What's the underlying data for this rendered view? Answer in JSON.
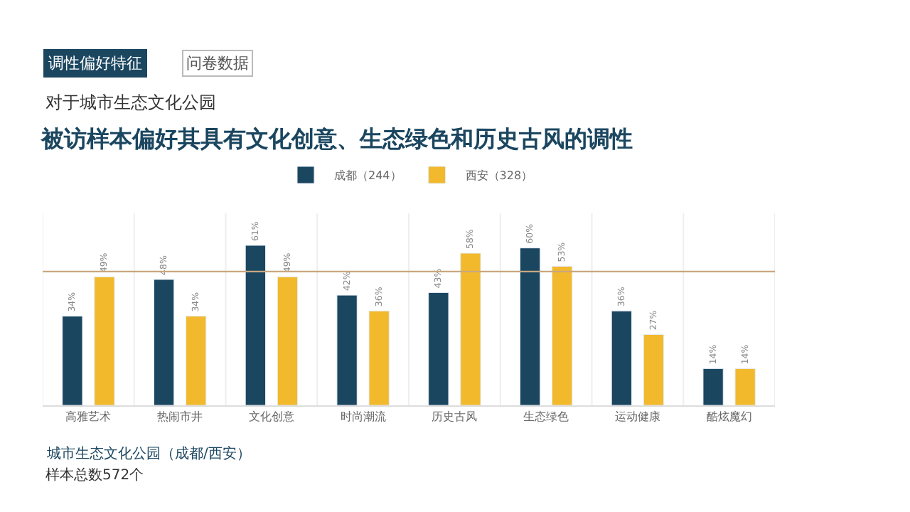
{
  "chart_data": {
    "type": "bar",
    "title": "被访样本偏好其具有文化创意、生态绿色和历史古风的调性",
    "subtitle": "对于城市生态文化公园",
    "categories": [
      "高雅艺术",
      "热闹市井",
      "文化创意",
      "时尚潮流",
      "历史古风",
      "生态绿色",
      "运动健康",
      "酷炫魔幻"
    ],
    "series": [
      {
        "name": "成都（244）",
        "color": "#1b4660",
        "values": [
          34,
          48,
          61,
          42,
          43,
          60,
          36,
          14
        ],
        "value_labels": [
          "34%",
          "48%",
          "61%",
          "42%",
          "43%",
          "60%",
          "36%",
          "14%"
        ]
      },
      {
        "name": "西安（328）",
        "color": "#f2b92c",
        "values": [
          49,
          34,
          49,
          36,
          58,
          53,
          27,
          14
        ],
        "value_labels": [
          "49%",
          "34%",
          "49%",
          "36%",
          "58%",
          "53%",
          "27%",
          "14%"
        ]
      }
    ],
    "ref_lines": [
      {
        "axis": "y",
        "value": 51,
        "color": "#c8a77e"
      }
    ],
    "annotations": [
      "调性偏好特征",
      "问卷数据",
      "城市生态文化公园（成都/西安）",
      "样本总数572个"
    ],
    "grid": "x",
    "legend": "top",
    "tick_labels": "x"
  }
}
